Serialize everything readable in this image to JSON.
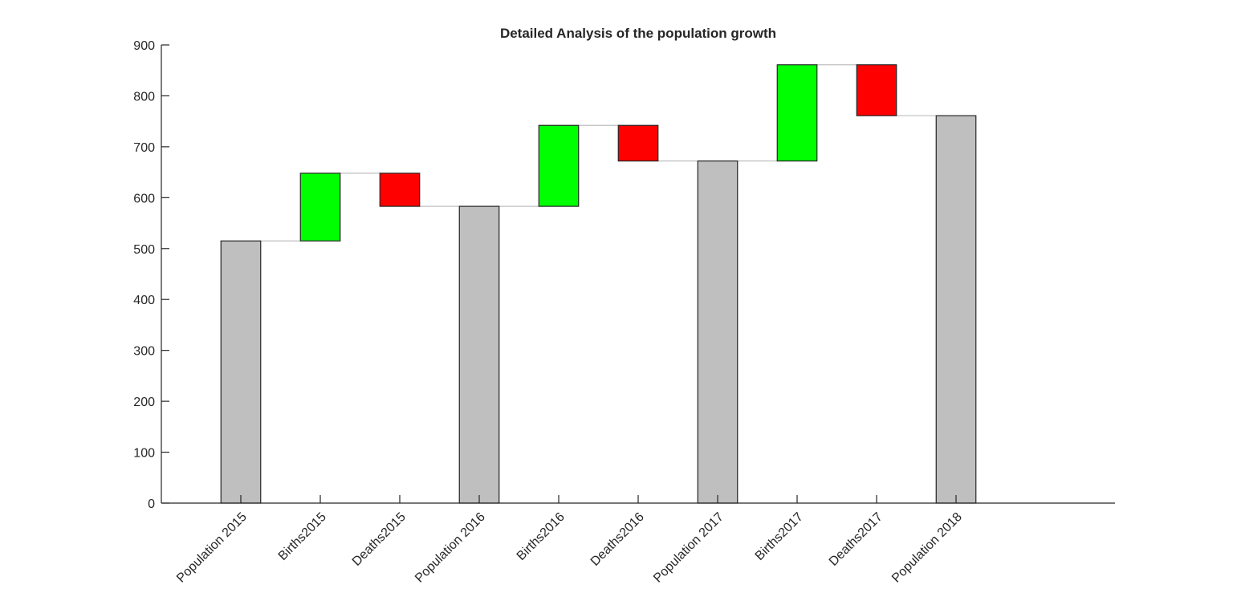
{
  "chart_data": {
    "type": "waterfall",
    "title": "Detailed Analysis of the population growth",
    "xlabel": "",
    "ylabel": "",
    "categories": [
      "Population 2015",
      "Births2015",
      "Deaths2015",
      "Population 2016",
      "Births2016",
      "Deaths2016",
      "Population 2017",
      "Births2017",
      "Deaths2017",
      "Population 2018"
    ],
    "bars": [
      {
        "kind": "total",
        "start": 0,
        "end": 515
      },
      {
        "kind": "increase",
        "start": 515,
        "end": 648
      },
      {
        "kind": "decrease",
        "start": 648,
        "end": 583
      },
      {
        "kind": "total",
        "start": 0,
        "end": 583
      },
      {
        "kind": "increase",
        "start": 583,
        "end": 742
      },
      {
        "kind": "decrease",
        "start": 742,
        "end": 672
      },
      {
        "kind": "total",
        "start": 0,
        "end": 672
      },
      {
        "kind": "increase",
        "start": 672,
        "end": 861
      },
      {
        "kind": "decrease",
        "start": 861,
        "end": 761
      },
      {
        "kind": "total",
        "start": 0,
        "end": 761
      }
    ],
    "ylim": [
      0,
      900
    ],
    "xlim": [
      0,
      12
    ],
    "yticks": [
      0,
      100,
      200,
      300,
      400,
      500,
      600,
      700,
      800,
      900
    ],
    "grid": false,
    "colors": {
      "total": "#bfbfbf",
      "increase": "#00ff00",
      "decrease": "#ff0000",
      "connector": "#bfbfbf",
      "edge": "#262626"
    }
  }
}
